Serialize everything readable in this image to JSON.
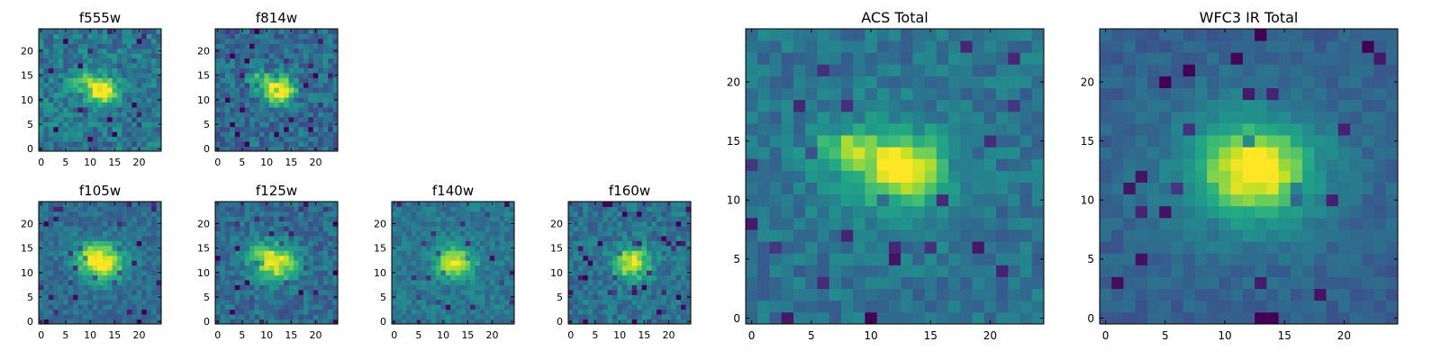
{
  "chart_data": [
    {
      "type": "heatmap",
      "title": "f555w",
      "grid_size": 25,
      "colormap": "viridis",
      "xlim": [
        0,
        24
      ],
      "ylim": [
        0,
        24
      ],
      "xticks": [
        0,
        5,
        10,
        15,
        20
      ],
      "yticks": [
        0,
        5,
        10,
        15,
        20
      ],
      "xtick_labels": [
        "0",
        "5",
        "10",
        "15",
        "20"
      ],
      "ytick_labels": [
        "0",
        "5",
        "10",
        "15",
        "20"
      ],
      "blobs": [
        {
          "x": 12.5,
          "y": 12.0,
          "amp": 0.7,
          "sigma_x": 2.1,
          "sigma_y": 1.8
        },
        {
          "x": 8.0,
          "y": 14.0,
          "amp": 0.35,
          "sigma_x": 1.8,
          "sigma_y": 1.2
        }
      ],
      "background": 0.4,
      "noise": 0.15,
      "seed": 11
    },
    {
      "type": "heatmap",
      "title": "f814w",
      "grid_size": 25,
      "colormap": "viridis",
      "xlim": [
        0,
        24
      ],
      "ylim": [
        0,
        24
      ],
      "xticks": [
        0,
        5,
        10,
        15,
        20
      ],
      "yticks": [
        0,
        5,
        10,
        15,
        20
      ],
      "xtick_labels": [
        "0",
        "5",
        "10",
        "15",
        "20"
      ],
      "ytick_labels": [
        "0",
        "5",
        "10",
        "15",
        "20"
      ],
      "blobs": [
        {
          "x": 12.5,
          "y": 12.0,
          "amp": 0.75,
          "sigma_x": 2.2,
          "sigma_y": 1.8
        },
        {
          "x": 8.5,
          "y": 14.0,
          "amp": 0.35,
          "sigma_x": 1.8,
          "sigma_y": 1.3
        }
      ],
      "background": 0.35,
      "noise": 0.15,
      "seed": 23
    },
    {
      "type": "heatmap",
      "title": "f105w",
      "grid_size": 25,
      "colormap": "viridis",
      "xlim": [
        0,
        24
      ],
      "ylim": [
        0,
        24
      ],
      "xticks": [
        0,
        5,
        10,
        15,
        20
      ],
      "yticks": [
        0,
        5,
        10,
        15,
        20
      ],
      "xtick_labels": [
        "0",
        "5",
        "10",
        "15",
        "20"
      ],
      "ytick_labels": [
        "0",
        "5",
        "10",
        "15",
        "20"
      ],
      "blobs": [
        {
          "x": 12.5,
          "y": 12.0,
          "amp": 0.65,
          "sigma_x": 3.2,
          "sigma_y": 2.6
        },
        {
          "x": 9.5,
          "y": 14.0,
          "amp": 0.2,
          "sigma_x": 2.5,
          "sigma_y": 2.0
        }
      ],
      "background": 0.35,
      "noise": 0.1,
      "seed": 37
    },
    {
      "type": "heatmap",
      "title": "f125w",
      "grid_size": 25,
      "colormap": "viridis",
      "xlim": [
        0,
        24
      ],
      "ylim": [
        0,
        24
      ],
      "xticks": [
        0,
        5,
        10,
        15,
        20
      ],
      "yticks": [
        0,
        5,
        10,
        15,
        20
      ],
      "xtick_labels": [
        "0",
        "5",
        "10",
        "15",
        "20"
      ],
      "ytick_labels": [
        "0",
        "5",
        "10",
        "15",
        "20"
      ],
      "blobs": [
        {
          "x": 12.0,
          "y": 12.0,
          "amp": 0.6,
          "sigma_x": 3.0,
          "sigma_y": 2.6
        },
        {
          "x": 8.0,
          "y": 14.0,
          "amp": 0.15,
          "sigma_x": 2.5,
          "sigma_y": 2.0
        }
      ],
      "background": 0.35,
      "noise": 0.12,
      "seed": 41
    },
    {
      "type": "heatmap",
      "title": "f140w",
      "grid_size": 25,
      "colormap": "viridis",
      "xlim": [
        0,
        24
      ],
      "ylim": [
        0,
        24
      ],
      "xticks": [
        0,
        5,
        10,
        15,
        20
      ],
      "yticks": [
        0,
        5,
        10,
        15,
        20
      ],
      "xtick_labels": [
        "0",
        "5",
        "10",
        "15",
        "20"
      ],
      "ytick_labels": [
        "0",
        "5",
        "10",
        "15",
        "20"
      ],
      "blobs": [
        {
          "x": 12.5,
          "y": 12.0,
          "amp": 0.6,
          "sigma_x": 2.6,
          "sigma_y": 2.2
        }
      ],
      "background": 0.4,
      "noise": 0.1,
      "seed": 53
    },
    {
      "type": "heatmap",
      "title": "f160w",
      "grid_size": 25,
      "colormap": "viridis",
      "xlim": [
        0,
        24
      ],
      "ylim": [
        0,
        24
      ],
      "xticks": [
        0,
        5,
        10,
        15,
        20
      ],
      "yticks": [
        0,
        5,
        10,
        15,
        20
      ],
      "xtick_labels": [
        "0",
        "5",
        "10",
        "15",
        "20"
      ],
      "ytick_labels": [
        "0",
        "5",
        "10",
        "15",
        "20"
      ],
      "blobs": [
        {
          "x": 12.5,
          "y": 12.0,
          "amp": 0.6,
          "sigma_x": 2.6,
          "sigma_y": 2.2
        }
      ],
      "background": 0.38,
      "noise": 0.12,
      "seed": 67
    },
    {
      "type": "heatmap",
      "title": "ACS Total",
      "grid_size": 25,
      "colormap": "viridis",
      "xlim": [
        0,
        24
      ],
      "ylim": [
        0,
        24
      ],
      "xticks": [
        0,
        5,
        10,
        15,
        20
      ],
      "yticks": [
        0,
        5,
        10,
        15,
        20
      ],
      "xtick_labels": [
        "0",
        "5",
        "10",
        "15",
        "20"
      ],
      "ytick_labels": [
        "0",
        "5",
        "10",
        "15",
        "20"
      ],
      "blobs": [
        {
          "x": 12.8,
          "y": 12.6,
          "amp": 0.55,
          "sigma_x": 2.0,
          "sigma_y": 1.8
        },
        {
          "x": 8.0,
          "y": 14.2,
          "amp": 0.35,
          "sigma_x": 1.6,
          "sigma_y": 1.2
        },
        {
          "x": 11.0,
          "y": 13.0,
          "amp": 0.2,
          "sigma_x": 4.0,
          "sigma_y": 3.0
        }
      ],
      "background": 0.38,
      "noise": 0.1,
      "seed": 79
    },
    {
      "type": "heatmap",
      "title": "WFC3 IR Total",
      "grid_size": 25,
      "colormap": "viridis",
      "xlim": [
        0,
        24
      ],
      "ylim": [
        0,
        24
      ],
      "xticks": [
        0,
        5,
        10,
        15,
        20
      ],
      "yticks": [
        0,
        5,
        10,
        15,
        20
      ],
      "xtick_labels": [
        "0",
        "5",
        "10",
        "15",
        "20"
      ],
      "ytick_labels": [
        "0",
        "5",
        "10",
        "15",
        "20"
      ],
      "blobs": [
        {
          "x": 12.5,
          "y": 12.5,
          "amp": 0.6,
          "sigma_x": 3.0,
          "sigma_y": 2.4
        },
        {
          "x": 12.0,
          "y": 12.5,
          "amp": 0.18,
          "sigma_x": 6.0,
          "sigma_y": 5.0
        }
      ],
      "background": 0.3,
      "noise": 0.06,
      "seed": 97
    }
  ]
}
